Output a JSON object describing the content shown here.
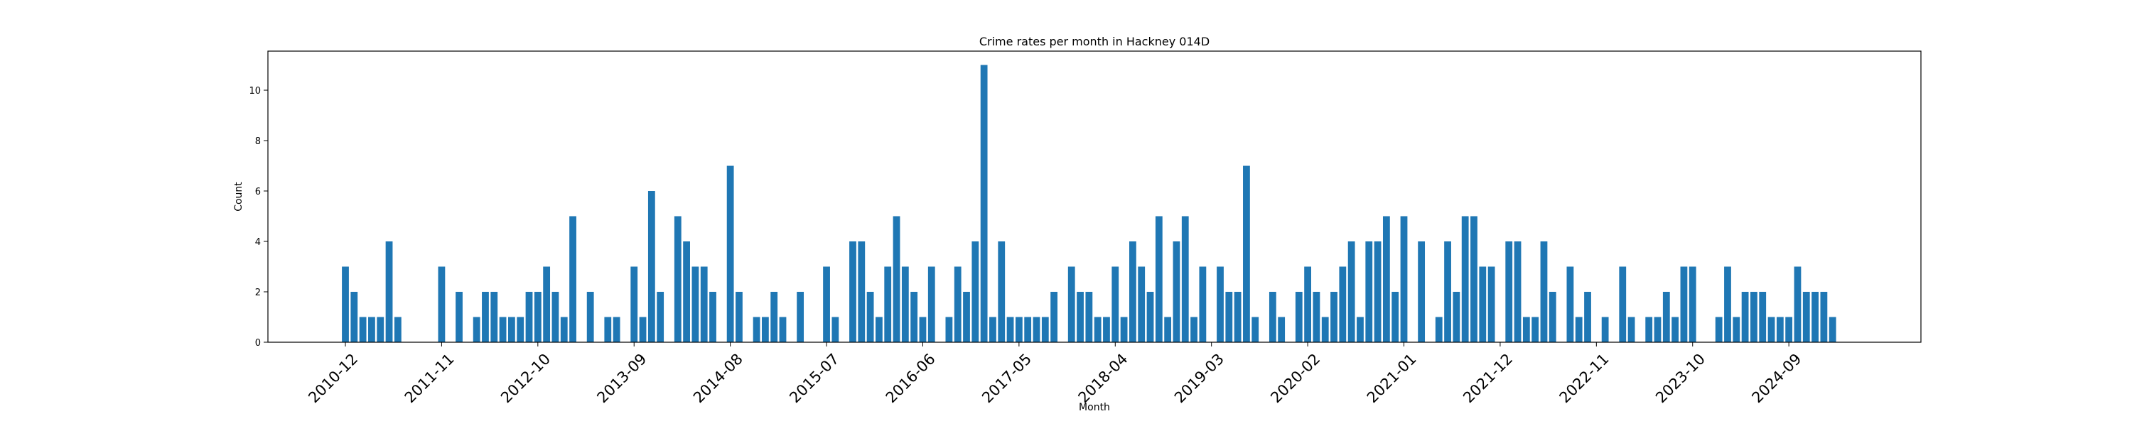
{
  "chart_data": {
    "type": "bar",
    "title": "Crime rates per month in Hackney 014D",
    "xlabel": "Month",
    "ylabel": "Count",
    "ylim": [
      0,
      11.55
    ],
    "yticks": [
      0,
      2,
      4,
      6,
      8,
      10
    ],
    "xtick_labels": [
      "2010-12",
      "2011-11",
      "2012-10",
      "2013-09",
      "2014-08",
      "2015-07",
      "2016-06",
      "2017-05",
      "2018-04",
      "2019-03",
      "2020-02",
      "2021-01",
      "2021-12",
      "2022-11",
      "2023-10",
      "2024-09"
    ],
    "grid": false,
    "color": "#1f77b4",
    "start_month": "2010-12",
    "values": [
      3,
      2,
      1,
      1,
      1,
      4,
      1,
      0,
      0,
      0,
      0,
      3,
      0,
      2,
      0,
      1,
      2,
      2,
      1,
      1,
      1,
      2,
      2,
      3,
      2,
      1,
      5,
      0,
      2,
      0,
      1,
      1,
      0,
      3,
      1,
      6,
      2,
      0,
      5,
      4,
      3,
      3,
      2,
      0,
      7,
      2,
      0,
      1,
      1,
      2,
      1,
      0,
      2,
      0,
      0,
      3,
      1,
      0,
      4,
      4,
      2,
      1,
      3,
      5,
      3,
      2,
      1,
      3,
      0,
      1,
      3,
      2,
      4,
      11,
      1,
      4,
      1,
      1,
      1,
      1,
      1,
      2,
      0,
      3,
      2,
      2,
      1,
      1,
      3,
      1,
      4,
      3,
      2,
      5,
      1,
      4,
      5,
      1,
      3,
      0,
      3,
      2,
      2,
      7,
      1,
      0,
      2,
      1,
      0,
      2,
      3,
      2,
      1,
      2,
      3,
      4,
      1,
      4,
      4,
      5,
      2,
      5,
      0,
      4,
      0,
      1,
      4,
      2,
      5,
      5,
      3,
      3,
      0,
      4,
      4,
      1,
      1,
      4,
      2,
      0,
      3,
      1,
      2,
      0,
      1,
      0,
      3,
      1,
      0,
      1,
      1,
      2,
      1,
      3,
      3,
      0,
      0,
      1,
      3,
      1,
      2,
      2,
      2,
      1,
      1,
      1,
      3,
      2,
      2,
      2,
      1
    ]
  }
}
